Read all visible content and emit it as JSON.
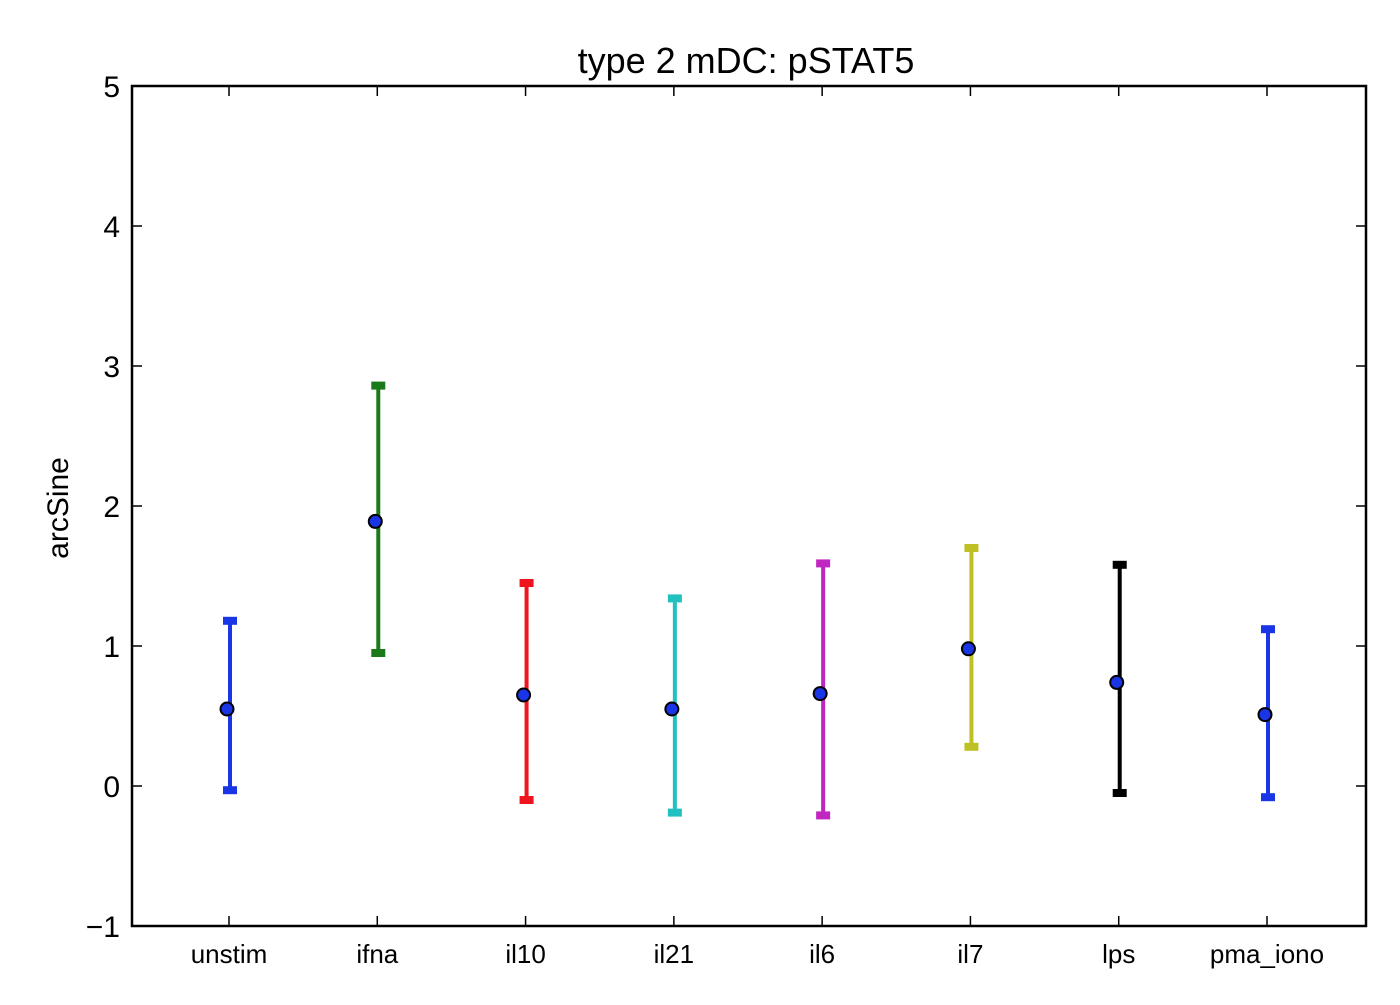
{
  "chart_data": {
    "type": "errorbar",
    "title": "type 2 mDC: pSTAT5",
    "xlabel": "",
    "ylabel": "arcSine",
    "ylim": [
      -1,
      5
    ],
    "yticks": [
      -1,
      0,
      1,
      2,
      3,
      4,
      5
    ],
    "ytick_labels": [
      "−1",
      "0",
      "1",
      "2",
      "3",
      "4",
      "5"
    ],
    "grid": false,
    "categories": [
      "unstim",
      "ifna",
      "il10",
      "il21",
      "il6",
      "il7",
      "lps",
      "pma_iono"
    ],
    "points": [
      {
        "category": "unstim",
        "mean": 0.55,
        "low": -0.03,
        "high": 1.18,
        "color": "#1a35e6"
      },
      {
        "category": "ifna",
        "mean": 1.89,
        "low": 0.95,
        "high": 2.86,
        "color": "#1a7a1a"
      },
      {
        "category": "il10",
        "mean": 0.65,
        "low": -0.1,
        "high": 1.45,
        "color": "#f0141e"
      },
      {
        "category": "il21",
        "mean": 0.55,
        "low": -0.19,
        "high": 1.34,
        "color": "#22c0c0"
      },
      {
        "category": "il6",
        "mean": 0.66,
        "low": -0.21,
        "high": 1.59,
        "color": "#c026c0"
      },
      {
        "category": "il7",
        "mean": 0.98,
        "low": 0.28,
        "high": 1.7,
        "color": "#bfbf26"
      },
      {
        "category": "lps",
        "mean": 0.74,
        "low": -0.05,
        "high": 1.58,
        "color": "#000000"
      },
      {
        "category": "pma_iono",
        "mean": 0.51,
        "low": -0.08,
        "high": 1.12,
        "color": "#1a35e6"
      }
    ],
    "marker_color": "#1a35e6"
  }
}
